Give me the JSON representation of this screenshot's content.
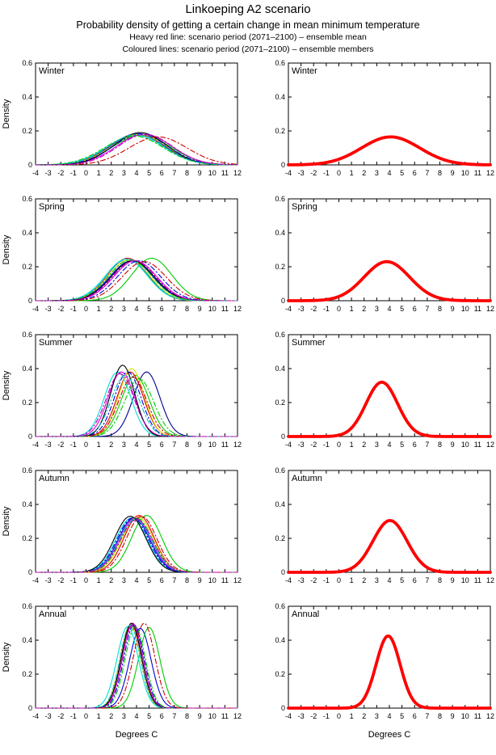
{
  "header": {
    "title": "Linkoeping A2 scenario",
    "subtitle": "Probability density of getting a certain change in mean minimum temperature",
    "note_mean": "Heavy red line: scenario period (2071–2100) – ensemble mean",
    "note_members": "Coloured lines: scenario period (2071–2100) – ensemble members"
  },
  "axes": {
    "xlabel": "Degrees C",
    "ylabel": "Density",
    "xlim": [
      -4,
      12
    ],
    "ylim": [
      0,
      0.6
    ],
    "xticks": [
      -4,
      -3,
      -2,
      -1,
      0,
      1,
      2,
      3,
      4,
      5,
      6,
      7,
      8,
      9,
      10,
      11,
      12
    ],
    "yticks": [
      0,
      0.2,
      0.4,
      0.6
    ],
    "ytick_labels": [
      "0",
      "0.2",
      "0.4",
      "0.6"
    ]
  },
  "style": {
    "axis_color": "#000000",
    "mean_color": "#ff0000",
    "mean_width": 3.8,
    "member_width": 1.1,
    "dashdot_pattern": "6 3 1.5 3"
  },
  "chart_data": [
    {
      "type": "line",
      "season": "Winter",
      "panel": "ensemble-members",
      "xlim": [
        -4,
        12
      ],
      "ylim": [
        0,
        0.6
      ],
      "series": [
        {
          "name": "member-01",
          "color": "#0000dd",
          "dash": "solid",
          "mean": 4.1,
          "sigma": 2.15,
          "peak": 0.185
        },
        {
          "name": "member-02",
          "color": "#00cc00",
          "dash": "solid",
          "mean": 4.4,
          "sigma": 2.3,
          "peak": 0.175
        },
        {
          "name": "member-03",
          "color": "#dd0000",
          "dash": "solid",
          "mean": 4.0,
          "sigma": 2.2,
          "peak": 0.18
        },
        {
          "name": "member-04",
          "color": "#00dddd",
          "dash": "solid",
          "mean": 3.9,
          "sigma": 2.25,
          "peak": 0.175
        },
        {
          "name": "member-05",
          "color": "#dd00dd",
          "dash": "solid",
          "mean": 4.6,
          "sigma": 2.2,
          "peak": 0.18
        },
        {
          "name": "member-06",
          "color": "#dddd00",
          "dash": "solid",
          "mean": 4.2,
          "sigma": 2.2,
          "peak": 0.18
        },
        {
          "name": "member-07",
          "color": "#000000",
          "dash": "solid",
          "mean": 4.3,
          "sigma": 2.1,
          "peak": 0.19
        },
        {
          "name": "member-08",
          "color": "#0000dd",
          "dash": "dashdot",
          "mean": 4.3,
          "sigma": 2.2,
          "peak": 0.18
        },
        {
          "name": "member-09",
          "color": "#00cc00",
          "dash": "dashdot",
          "mean": 3.8,
          "sigma": 2.3,
          "peak": 0.17
        },
        {
          "name": "member-10",
          "color": "#cc0000",
          "dash": "dashdot",
          "mean": 5.7,
          "sigma": 2.3,
          "peak": 0.165
        },
        {
          "name": "member-11",
          "color": "#00bbbb",
          "dash": "dashdot",
          "mean": 4.0,
          "sigma": 2.2,
          "peak": 0.18
        },
        {
          "name": "member-12",
          "color": "#bb00bb",
          "dash": "dashdot",
          "mean": 4.7,
          "sigma": 2.15,
          "peak": 0.18
        }
      ]
    },
    {
      "type": "line",
      "season": "Winter",
      "panel": "ensemble-mean",
      "xlim": [
        -4,
        12
      ],
      "ylim": [
        0,
        0.6
      ],
      "series": [
        {
          "name": "ensemble-mean",
          "color": "#ff0000",
          "dash": "solid",
          "mean": 4.1,
          "sigma": 2.3,
          "peak": 0.165,
          "heavy": true
        }
      ]
    },
    {
      "type": "line",
      "season": "Spring",
      "panel": "ensemble-members",
      "xlim": [
        -4,
        12
      ],
      "ylim": [
        0,
        0.6
      ],
      "series": [
        {
          "name": "member-01",
          "color": "#0000dd",
          "dash": "solid",
          "mean": 3.6,
          "sigma": 1.7,
          "peak": 0.235
        },
        {
          "name": "member-02",
          "color": "#00cc00",
          "dash": "solid",
          "mean": 5.2,
          "sigma": 1.6,
          "peak": 0.25
        },
        {
          "name": "member-03",
          "color": "#dd0000",
          "dash": "solid",
          "mean": 3.3,
          "sigma": 1.6,
          "peak": 0.25
        },
        {
          "name": "member-04",
          "color": "#00dddd",
          "dash": "solid",
          "mean": 3.2,
          "sigma": 1.65,
          "peak": 0.245
        },
        {
          "name": "member-05",
          "color": "#dd00dd",
          "dash": "solid",
          "mean": 3.9,
          "sigma": 1.7,
          "peak": 0.235
        },
        {
          "name": "member-06",
          "color": "#dddd00",
          "dash": "solid",
          "mean": 3.4,
          "sigma": 1.65,
          "peak": 0.24
        },
        {
          "name": "member-07",
          "color": "#000000",
          "dash": "solid",
          "mean": 3.7,
          "sigma": 1.7,
          "peak": 0.235
        },
        {
          "name": "member-08",
          "color": "#0000dd",
          "dash": "dashdot",
          "mean": 4.2,
          "sigma": 1.7,
          "peak": 0.235
        },
        {
          "name": "member-09",
          "color": "#00cc00",
          "dash": "dashdot",
          "mean": 3.5,
          "sigma": 1.7,
          "peak": 0.24
        },
        {
          "name": "member-10",
          "color": "#cc0000",
          "dash": "dashdot",
          "mean": 4.6,
          "sigma": 1.75,
          "peak": 0.23
        },
        {
          "name": "member-11",
          "color": "#00bbbb",
          "dash": "dashdot",
          "mean": 3.3,
          "sigma": 1.65,
          "peak": 0.245
        },
        {
          "name": "member-12",
          "color": "#bb00bb",
          "dash": "dashdot",
          "mean": 3.8,
          "sigma": 1.7,
          "peak": 0.235
        }
      ]
    },
    {
      "type": "line",
      "season": "Spring",
      "panel": "ensemble-mean",
      "xlim": [
        -4,
        12
      ],
      "ylim": [
        0,
        0.6
      ],
      "series": [
        {
          "name": "ensemble-mean",
          "color": "#ff0000",
          "dash": "solid",
          "mean": 3.8,
          "sigma": 1.8,
          "peak": 0.23,
          "heavy": true
        }
      ]
    },
    {
      "type": "line",
      "season": "Summer",
      "panel": "ensemble-members",
      "xlim": [
        -4,
        12
      ],
      "ylim": [
        0,
        0.6
      ],
      "series": [
        {
          "name": "member-01",
          "color": "#000099",
          "dash": "solid",
          "mean": 4.8,
          "sigma": 1.05,
          "peak": 0.38
        },
        {
          "name": "member-02",
          "color": "#00cc00",
          "dash": "solid",
          "mean": 3.9,
          "sigma": 1.1,
          "peak": 0.36
        },
        {
          "name": "member-03",
          "color": "#dd0000",
          "dash": "solid",
          "mean": 3.5,
          "sigma": 1.05,
          "peak": 0.38
        },
        {
          "name": "member-04",
          "color": "#00dddd",
          "dash": "solid",
          "mean": 2.5,
          "sigma": 1.05,
          "peak": 0.38
        },
        {
          "name": "member-05",
          "color": "#dd00dd",
          "dash": "solid",
          "mean": 2.8,
          "sigma": 1.05,
          "peak": 0.38
        },
        {
          "name": "member-06",
          "color": "#dddd00",
          "dash": "solid",
          "mean": 3.6,
          "sigma": 1.0,
          "peak": 0.4
        },
        {
          "name": "member-07",
          "color": "#000000",
          "dash": "solid",
          "mean": 2.9,
          "sigma": 0.95,
          "peak": 0.42
        },
        {
          "name": "member-08",
          "color": "#0000dd",
          "dash": "dashdot",
          "mean": 3.3,
          "sigma": 1.05,
          "peak": 0.38
        },
        {
          "name": "member-09",
          "color": "#00cc00",
          "dash": "dashdot",
          "mean": 4.2,
          "sigma": 1.15,
          "peak": 0.34
        },
        {
          "name": "member-10",
          "color": "#cc0000",
          "dash": "dashdot",
          "mean": 3.7,
          "sigma": 1.1,
          "peak": 0.35
        },
        {
          "name": "member-11",
          "color": "#00bbbb",
          "dash": "dashdot",
          "mean": 3.1,
          "sigma": 1.1,
          "peak": 0.36
        },
        {
          "name": "member-12",
          "color": "#bb00bb",
          "dash": "dashdot",
          "mean": 2.7,
          "sigma": 1.1,
          "peak": 0.37
        }
      ]
    },
    {
      "type": "line",
      "season": "Summer",
      "panel": "ensemble-mean",
      "xlim": [
        -4,
        12
      ],
      "ylim": [
        0,
        0.6
      ],
      "series": [
        {
          "name": "ensemble-mean",
          "color": "#ff0000",
          "dash": "solid",
          "mean": 3.4,
          "sigma": 1.25,
          "peak": 0.32,
          "heavy": true
        }
      ]
    },
    {
      "type": "line",
      "season": "Autumn",
      "panel": "ensemble-members",
      "xlim": [
        -4,
        12
      ],
      "ylim": [
        0,
        0.6
      ],
      "series": [
        {
          "name": "member-01",
          "color": "#0000dd",
          "dash": "solid",
          "mean": 3.8,
          "sigma": 1.25,
          "peak": 0.32
        },
        {
          "name": "member-02",
          "color": "#00cc00",
          "dash": "solid",
          "mean": 4.8,
          "sigma": 1.2,
          "peak": 0.335
        },
        {
          "name": "member-03",
          "color": "#dd0000",
          "dash": "solid",
          "mean": 4.2,
          "sigma": 1.2,
          "peak": 0.335
        },
        {
          "name": "member-04",
          "color": "#00dddd",
          "dash": "solid",
          "mean": 3.6,
          "sigma": 1.25,
          "peak": 0.32
        },
        {
          "name": "member-05",
          "color": "#dd00dd",
          "dash": "solid",
          "mean": 3.9,
          "sigma": 1.25,
          "peak": 0.32
        },
        {
          "name": "member-06",
          "color": "#dddd00",
          "dash": "solid",
          "mean": 4.1,
          "sigma": 1.25,
          "peak": 0.325
        },
        {
          "name": "member-07",
          "color": "#000000",
          "dash": "solid",
          "mean": 3.5,
          "sigma": 1.25,
          "peak": 0.33
        },
        {
          "name": "member-08",
          "color": "#0000dd",
          "dash": "dashdot",
          "mean": 3.7,
          "sigma": 1.25,
          "peak": 0.32
        },
        {
          "name": "member-09",
          "color": "#00cc00",
          "dash": "dashdot",
          "mean": 4.0,
          "sigma": 1.25,
          "peak": 0.32
        },
        {
          "name": "member-10",
          "color": "#cc0000",
          "dash": "dashdot",
          "mean": 4.4,
          "sigma": 1.2,
          "peak": 0.33
        },
        {
          "name": "member-11",
          "color": "#00bbbb",
          "dash": "dashdot",
          "mean": 3.9,
          "sigma": 1.3,
          "peak": 0.31
        },
        {
          "name": "member-12",
          "color": "#bb00bb",
          "dash": "dashdot",
          "mean": 4.0,
          "sigma": 1.3,
          "peak": 0.31
        }
      ]
    },
    {
      "type": "line",
      "season": "Autumn",
      "panel": "ensemble-mean",
      "xlim": [
        -4,
        12
      ],
      "ylim": [
        0,
        0.6
      ],
      "series": [
        {
          "name": "ensemble-mean",
          "color": "#ff0000",
          "dash": "solid",
          "mean": 4.05,
          "sigma": 1.35,
          "peak": 0.305,
          "heavy": true
        }
      ]
    },
    {
      "type": "line",
      "season": "Annual",
      "panel": "ensemble-members",
      "xlim": [
        -4,
        12
      ],
      "ylim": [
        0,
        0.6
      ],
      "series": [
        {
          "name": "member-01",
          "color": "#0000dd",
          "dash": "solid",
          "mean": 4.3,
          "sigma": 0.85,
          "peak": 0.47
        },
        {
          "name": "member-02",
          "color": "#00cc00",
          "dash": "solid",
          "mean": 5.0,
          "sigma": 0.85,
          "peak": 0.475
        },
        {
          "name": "member-03",
          "color": "#dd0000",
          "dash": "solid",
          "mean": 3.6,
          "sigma": 0.8,
          "peak": 0.49
        },
        {
          "name": "member-04",
          "color": "#00dddd",
          "dash": "solid",
          "mean": 3.3,
          "sigma": 0.85,
          "peak": 0.48
        },
        {
          "name": "member-05",
          "color": "#dd00dd",
          "dash": "solid",
          "mean": 3.7,
          "sigma": 0.8,
          "peak": 0.5
        },
        {
          "name": "member-06",
          "color": "#dddd00",
          "dash": "solid",
          "mean": 3.5,
          "sigma": 0.8,
          "peak": 0.49
        },
        {
          "name": "member-07",
          "color": "#000000",
          "dash": "solid",
          "mean": 3.6,
          "sigma": 0.8,
          "peak": 0.5
        },
        {
          "name": "member-08",
          "color": "#0000dd",
          "dash": "dashdot",
          "mean": 3.8,
          "sigma": 0.8,
          "peak": 0.49
        },
        {
          "name": "member-09",
          "color": "#00cc00",
          "dash": "dashdot",
          "mean": 3.9,
          "sigma": 0.8,
          "peak": 0.48
        },
        {
          "name": "member-10",
          "color": "#cc0000",
          "dash": "dashdot",
          "mean": 4.6,
          "sigma": 0.85,
          "peak": 0.5
        },
        {
          "name": "member-11",
          "color": "#00bbbb",
          "dash": "dashdot",
          "mean": 3.5,
          "sigma": 0.8,
          "peak": 0.49
        },
        {
          "name": "member-12",
          "color": "#bb00bb",
          "dash": "dashdot",
          "mean": 3.7,
          "sigma": 0.8,
          "peak": 0.49
        }
      ]
    },
    {
      "type": "line",
      "season": "Annual",
      "panel": "ensemble-mean",
      "xlim": [
        -4,
        12
      ],
      "ylim": [
        0,
        0.6
      ],
      "series": [
        {
          "name": "ensemble-mean",
          "color": "#ff0000",
          "dash": "solid",
          "mean": 3.9,
          "sigma": 0.95,
          "peak": 0.425,
          "heavy": true
        }
      ]
    }
  ]
}
